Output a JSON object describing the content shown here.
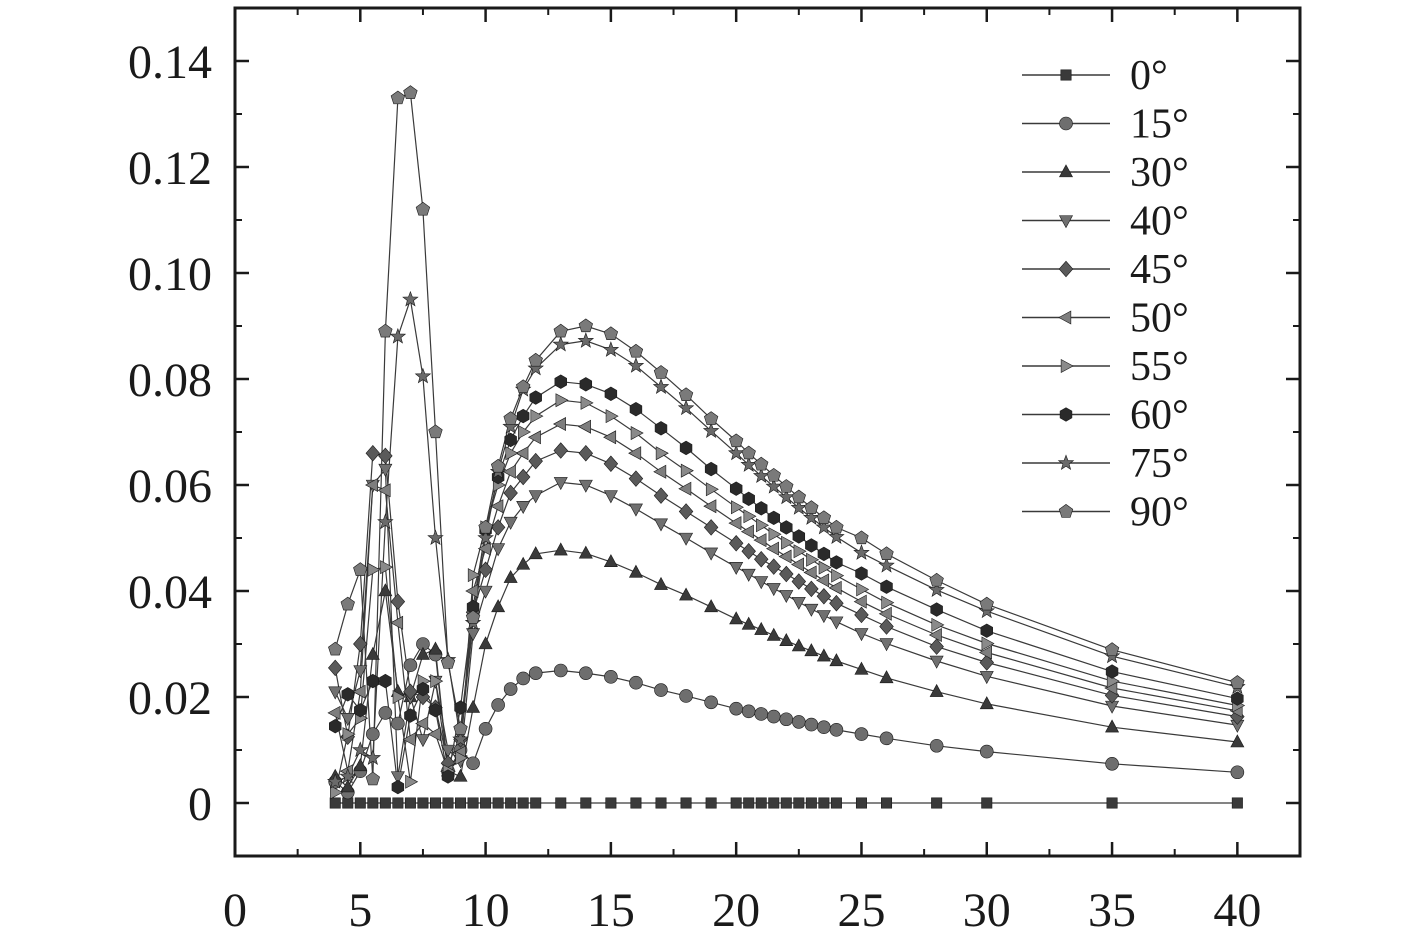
{
  "chart_data": {
    "type": "line",
    "title": "",
    "xlabel": "",
    "ylabel": "",
    "xlim": [
      0,
      42.5
    ],
    "ylim": [
      -0.01,
      0.15
    ],
    "x_ticks": [
      0,
      5,
      10,
      15,
      20,
      25,
      30,
      35,
      40
    ],
    "y_ticks": [
      0,
      0.02,
      0.04,
      0.06,
      0.08,
      0.1,
      0.12,
      0.14
    ],
    "x_tick_labels": [
      "0",
      "5",
      "10",
      "15",
      "20",
      "25",
      "30",
      "35",
      "40"
    ],
    "y_tick_labels": [
      "0",
      "0.02",
      "0.04",
      "0.06",
      "0.08",
      "0.10",
      "0.12",
      "0.14"
    ],
    "grid": false,
    "legend_position": "top-right",
    "x": [
      4,
      4.5,
      5,
      5.5,
      6,
      6.5,
      7,
      7.5,
      8,
      8.5,
      9,
      9.5,
      10,
      10.5,
      11,
      11.5,
      12,
      13,
      14,
      15,
      16,
      17,
      18,
      19,
      20,
      20.5,
      21,
      21.5,
      22,
      22.5,
      23,
      23.5,
      24,
      25,
      26,
      28,
      30,
      35,
      40
    ],
    "series": [
      {
        "name": "0°",
        "marker": "square",
        "color": "#3a3a3a",
        "values": [
          0,
          0,
          0,
          0,
          0,
          0,
          0,
          0,
          0,
          0,
          0,
          0,
          0,
          0,
          0,
          0,
          0,
          0,
          0,
          0,
          0,
          0,
          0,
          0,
          0,
          0,
          0,
          0,
          0,
          0,
          0,
          0,
          0,
          0,
          0,
          0,
          0,
          0,
          0
        ]
      },
      {
        "name": "15°",
        "marker": "circle",
        "color": "#6e6e6e",
        "values": [
          0.004,
          0.002,
          0.006,
          0.013,
          0.017,
          0.015,
          0.026,
          0.03,
          0.028,
          0.006,
          0.01,
          0.0075,
          0.014,
          0.0185,
          0.0215,
          0.0235,
          0.0245,
          0.025,
          0.0245,
          0.0238,
          0.0227,
          0.0213,
          0.0202,
          0.019,
          0.0178,
          0.0173,
          0.0168,
          0.0163,
          0.0158,
          0.0153,
          0.0148,
          0.0143,
          0.0138,
          0.013,
          0.0122,
          0.0108,
          0.0097,
          0.0074,
          0.0058
        ]
      },
      {
        "name": "30°",
        "marker": "triangle-up",
        "color": "#3a3a3a",
        "values": [
          0.005,
          0.003,
          0.007,
          0.028,
          0.04,
          0.021,
          0.02,
          0.028,
          0.029,
          0.006,
          0.005,
          0.018,
          0.03,
          0.037,
          0.0425,
          0.045,
          0.047,
          0.0477,
          0.0471,
          0.0455,
          0.0435,
          0.0412,
          0.0392,
          0.037,
          0.0347,
          0.0337,
          0.0327,
          0.0316,
          0.0306,
          0.0296,
          0.0287,
          0.0277,
          0.0268,
          0.0252,
          0.0236,
          0.021,
          0.0187,
          0.0143,
          0.0115
        ]
      },
      {
        "name": "40°",
        "marker": "triangle-down",
        "color": "#707070",
        "values": [
          0.021,
          0.016,
          0.025,
          0.06,
          0.063,
          0.005,
          0.02,
          0.012,
          0.023,
          0.01,
          0.008,
          0.032,
          0.04,
          0.048,
          0.053,
          0.056,
          0.058,
          0.0605,
          0.06,
          0.058,
          0.0555,
          0.0527,
          0.05,
          0.0472,
          0.0445,
          0.0432,
          0.0418,
          0.0405,
          0.0392,
          0.0379,
          0.0366,
          0.0354,
          0.0342,
          0.032,
          0.0301,
          0.0268,
          0.0239,
          0.0183,
          0.0147
        ]
      },
      {
        "name": "45°",
        "marker": "diamond",
        "color": "#5a5a5a",
        "values": [
          0.0255,
          0.0125,
          0.03,
          0.066,
          0.0655,
          0.038,
          0.021,
          0.02,
          0.018,
          0.0075,
          0.012,
          0.036,
          0.044,
          0.052,
          0.0585,
          0.0615,
          0.0645,
          0.0665,
          0.066,
          0.064,
          0.0612,
          0.058,
          0.055,
          0.052,
          0.049,
          0.0475,
          0.046,
          0.0446,
          0.0432,
          0.0418,
          0.0404,
          0.039,
          0.0377,
          0.0355,
          0.0333,
          0.0295,
          0.0265,
          0.0203,
          0.0163
        ]
      },
      {
        "name": "50°",
        "marker": "triangle-left",
        "color": "#7e7e7e",
        "values": [
          0.017,
          0.006,
          0.021,
          0.06,
          0.059,
          0.034,
          0.012,
          0.015,
          0.013,
          0.006,
          0.0095,
          0.04,
          0.048,
          0.056,
          0.0625,
          0.066,
          0.069,
          0.0715,
          0.071,
          0.069,
          0.066,
          0.0625,
          0.0593,
          0.056,
          0.0528,
          0.0512,
          0.0496,
          0.048,
          0.0465,
          0.045,
          0.0435,
          0.042,
          0.0406,
          0.038,
          0.0357,
          0.0317,
          0.0284,
          0.0217,
          0.0174
        ]
      },
      {
        "name": "55°",
        "marker": "triangle-right",
        "color": "#8a8a8a",
        "values": [
          0.002,
          0.013,
          0.016,
          0.044,
          0.0445,
          0.02,
          0.004,
          0.023,
          0.023,
          0.006,
          0.0085,
          0.043,
          0.052,
          0.06,
          0.066,
          0.07,
          0.073,
          0.076,
          0.0755,
          0.073,
          0.0698,
          0.066,
          0.0627,
          0.0592,
          0.0558,
          0.0541,
          0.0524,
          0.0507,
          0.0491,
          0.0475,
          0.0459,
          0.0444,
          0.0429,
          0.0403,
          0.0378,
          0.0336,
          0.0301,
          0.023,
          0.0184
        ]
      },
      {
        "name": "60°",
        "marker": "hexagon",
        "color": "#2a2a2a",
        "values": [
          0.0145,
          0.0205,
          0.0175,
          0.023,
          0.023,
          0.003,
          0.0165,
          0.0215,
          0.0175,
          0.005,
          0.018,
          0.037,
          0.0515,
          0.0615,
          0.0685,
          0.073,
          0.0765,
          0.0795,
          0.079,
          0.0772,
          0.0743,
          0.0707,
          0.067,
          0.063,
          0.0593,
          0.0574,
          0.0556,
          0.0538,
          0.052,
          0.0503,
          0.0486,
          0.047,
          0.0454,
          0.0433,
          0.0408,
          0.0365,
          0.0325,
          0.0248,
          0.0197
        ]
      },
      {
        "name": "75°",
        "marker": "star",
        "color": "#6a6a6a",
        "values": [
          0.004,
          0.005,
          0.01,
          0.0085,
          0.053,
          0.088,
          0.095,
          0.0805,
          0.05,
          0.027,
          0.012,
          0.034,
          0.05,
          0.0625,
          0.071,
          0.078,
          0.082,
          0.0865,
          0.0872,
          0.0855,
          0.0825,
          0.0785,
          0.0745,
          0.0702,
          0.066,
          0.0638,
          0.0617,
          0.0597,
          0.0577,
          0.0557,
          0.0538,
          0.052,
          0.0502,
          0.0472,
          0.0448,
          0.0402,
          0.0362,
          0.0277,
          0.0219
        ]
      },
      {
        "name": "90°",
        "marker": "pentagon",
        "color": "#7a7a7a",
        "values": [
          0.029,
          0.0375,
          0.044,
          0.0045,
          0.089,
          0.133,
          0.134,
          0.112,
          0.07,
          0.0265,
          0.014,
          0.035,
          0.052,
          0.0635,
          0.0725,
          0.0785,
          0.0835,
          0.089,
          0.09,
          0.0885,
          0.0852,
          0.0812,
          0.077,
          0.0725,
          0.0683,
          0.066,
          0.0639,
          0.0618,
          0.0597,
          0.0577,
          0.0557,
          0.0538,
          0.052,
          0.05,
          0.047,
          0.042,
          0.0375,
          0.0289,
          0.0227
        ]
      }
    ]
  }
}
